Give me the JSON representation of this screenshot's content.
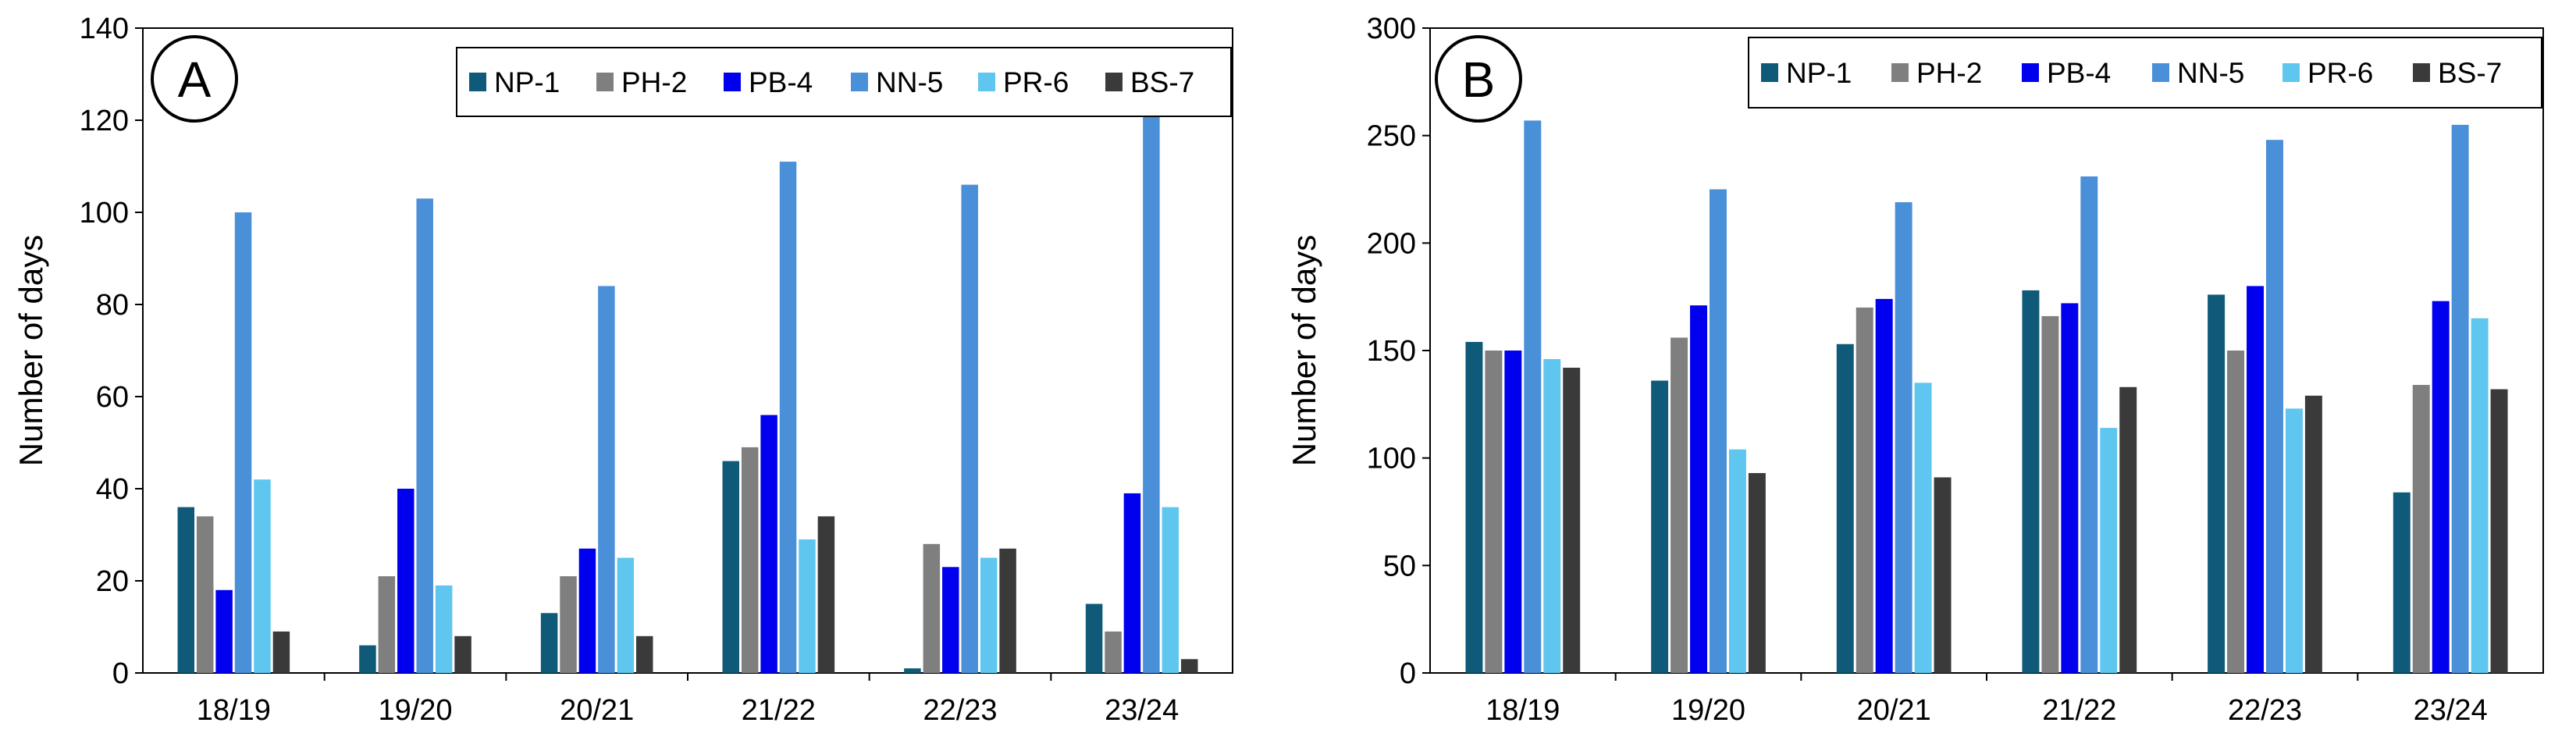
{
  "chart_data": [
    {
      "type": "bar",
      "panel_label": "A",
      "title": "",
      "xlabel": "",
      "ylabel": "Number of days",
      "ylim": [
        0,
        140
      ],
      "yticks": [
        0,
        20,
        40,
        60,
        80,
        100,
        120,
        140
      ],
      "grid": false,
      "legend_position": "top-right",
      "categories": [
        "18/19",
        "19/20",
        "20/21",
        "21/22",
        "22/23",
        "23/24"
      ],
      "series": [
        {
          "name": "NP-1",
          "color": "#0e5a78",
          "values": [
            36,
            6,
            13,
            46,
            1,
            15
          ]
        },
        {
          "name": "PH-2",
          "color": "#7f7f7f",
          "values": [
            34,
            21,
            21,
            49,
            28,
            9
          ]
        },
        {
          "name": "PB-4",
          "color": "#0000ee",
          "values": [
            18,
            40,
            27,
            56,
            23,
            39
          ]
        },
        {
          "name": "NN-5",
          "color": "#4a90d8",
          "values": [
            100,
            103,
            84,
            111,
            106,
            121
          ]
        },
        {
          "name": "PR-6",
          "color": "#5fc6ef",
          "values": [
            42,
            19,
            25,
            29,
            25,
            36
          ]
        },
        {
          "name": "BS-7",
          "color": "#3a3a3a",
          "values": [
            9,
            8,
            8,
            34,
            27,
            3
          ]
        }
      ]
    },
    {
      "type": "bar",
      "panel_label": "B",
      "title": "",
      "xlabel": "",
      "ylabel": "Number of days",
      "ylim": [
        0,
        300
      ],
      "yticks": [
        0,
        50,
        100,
        150,
        200,
        250,
        300
      ],
      "grid": false,
      "legend_position": "top-right",
      "categories": [
        "18/19",
        "19/20",
        "20/21",
        "21/22",
        "22/23",
        "23/24"
      ],
      "series": [
        {
          "name": "NP-1",
          "color": "#0e5a78",
          "values": [
            154,
            136,
            153,
            178,
            176,
            84
          ]
        },
        {
          "name": "PH-2",
          "color": "#7f7f7f",
          "values": [
            150,
            156,
            170,
            166,
            150,
            134
          ]
        },
        {
          "name": "PB-4",
          "color": "#0000ee",
          "values": [
            150,
            171,
            174,
            172,
            180,
            173
          ]
        },
        {
          "name": "NN-5",
          "color": "#4a90d8",
          "values": [
            257,
            225,
            219,
            231,
            248,
            255
          ]
        },
        {
          "name": "PR-6",
          "color": "#5fc6ef",
          "values": [
            146,
            104,
            135,
            114,
            123,
            165
          ]
        },
        {
          "name": "BS-7",
          "color": "#3a3a3a",
          "values": [
            142,
            93,
            91,
            133,
            129,
            132
          ]
        }
      ]
    }
  ]
}
